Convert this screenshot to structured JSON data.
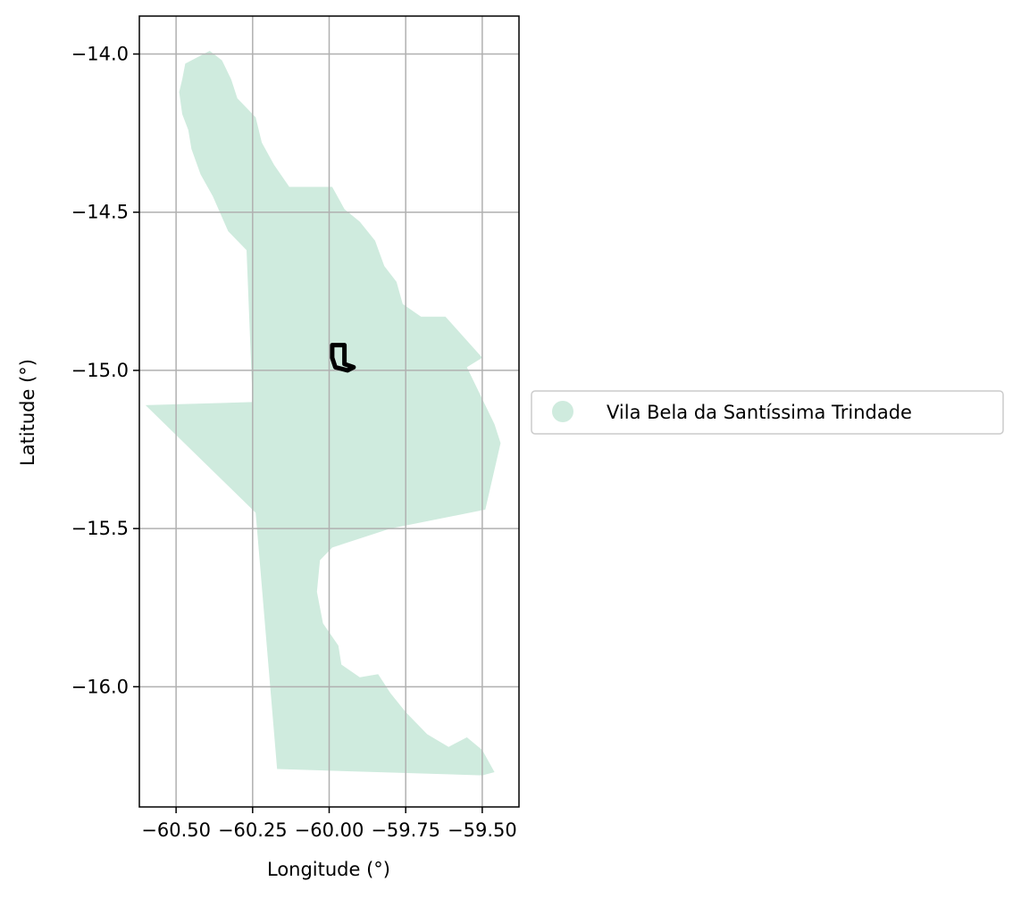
{
  "map": {
    "xlabel": "Longitude (°)",
    "ylabel": "Latitude (°)",
    "x_ticks": [
      "−60.50",
      "−60.25",
      "−60.00",
      "−59.75",
      "−59.50"
    ],
    "y_ticks": [
      "−14.0",
      "−14.5",
      "−15.0",
      "−15.5",
      "−16.0"
    ],
    "legend_label": "Vila Bela da Santíssima Trindade",
    "region_color": "#cfebde",
    "outline_color": "#000000",
    "grid": true,
    "legend_position": "right-center"
  },
  "chart_data": {
    "type": "map",
    "xlabel": "Longitude (°)",
    "ylabel": "Latitude (°)",
    "xlim": [
      -60.62,
      -59.38
    ],
    "ylim": [
      -16.38,
      -13.88
    ],
    "x_ticks": [
      -60.5,
      -60.25,
      -60.0,
      -59.75,
      -59.5
    ],
    "y_ticks": [
      -14.0,
      -14.5,
      -15.0,
      -15.5,
      -16.0
    ],
    "grid": true,
    "legend": [
      "Vila Bela da Santíssima Trindade"
    ],
    "legend_position": "right-center",
    "regions": [
      {
        "name": "Vila Bela da Santíssima Trindade",
        "color": "#cfebde",
        "boundary_lonlat": [
          [
            -60.39,
            -13.99
          ],
          [
            -60.35,
            -14.02
          ],
          [
            -60.32,
            -14.08
          ],
          [
            -60.3,
            -14.14
          ],
          [
            -60.24,
            -14.2
          ],
          [
            -60.22,
            -14.28
          ],
          [
            -60.18,
            -14.35
          ],
          [
            -60.13,
            -14.42
          ],
          [
            -60.06,
            -14.42
          ],
          [
            -59.99,
            -14.42
          ],
          [
            -59.95,
            -14.49
          ],
          [
            -59.9,
            -14.53
          ],
          [
            -59.85,
            -14.59
          ],
          [
            -59.82,
            -14.67
          ],
          [
            -59.78,
            -14.72
          ],
          [
            -59.76,
            -14.79
          ],
          [
            -59.7,
            -14.83
          ],
          [
            -59.62,
            -14.83
          ],
          [
            -59.5,
            -14.96
          ],
          [
            -59.55,
            -14.99
          ],
          [
            -59.51,
            -15.07
          ],
          [
            -59.46,
            -15.17
          ],
          [
            -59.44,
            -15.23
          ],
          [
            -59.49,
            -15.44
          ],
          [
            -59.8,
            -15.5
          ],
          [
            -59.99,
            -15.56
          ],
          [
            -60.03,
            -15.6
          ],
          [
            -60.04,
            -15.7
          ],
          [
            -60.02,
            -15.8
          ],
          [
            -59.97,
            -15.87
          ],
          [
            -59.96,
            -15.93
          ],
          [
            -59.9,
            -15.97
          ],
          [
            -59.84,
            -15.96
          ],
          [
            -59.8,
            -16.02
          ],
          [
            -59.75,
            -16.08
          ],
          [
            -59.68,
            -16.15
          ],
          [
            -59.61,
            -16.19
          ],
          [
            -59.55,
            -16.16
          ],
          [
            -59.5,
            -16.2
          ],
          [
            -59.46,
            -16.27
          ],
          [
            -59.5,
            -16.28
          ],
          [
            -60.17,
            -16.26
          ],
          [
            -60.24,
            -15.45
          ],
          [
            -60.6,
            -15.11
          ],
          [
            -60.25,
            -15.1
          ],
          [
            -60.27,
            -14.62
          ],
          [
            -60.33,
            -14.56
          ],
          [
            -60.38,
            -14.45
          ],
          [
            -60.42,
            -14.38
          ],
          [
            -60.45,
            -14.3
          ],
          [
            -60.46,
            -14.24
          ],
          [
            -60.48,
            -14.19
          ],
          [
            -60.49,
            -14.12
          ],
          [
            -60.48,
            -14.08
          ],
          [
            -60.47,
            -14.03
          ],
          [
            -60.41,
            -14.0
          ]
        ]
      }
    ],
    "highlight_outline": {
      "color": "#000000",
      "boundary_lonlat": [
        [
          -59.99,
          -14.92
        ],
        [
          -59.95,
          -14.92
        ],
        [
          -59.95,
          -14.98
        ],
        [
          -59.92,
          -14.99
        ],
        [
          -59.94,
          -15.0
        ],
        [
          -59.98,
          -14.99
        ],
        [
          -59.99,
          -14.96
        ]
      ]
    }
  }
}
